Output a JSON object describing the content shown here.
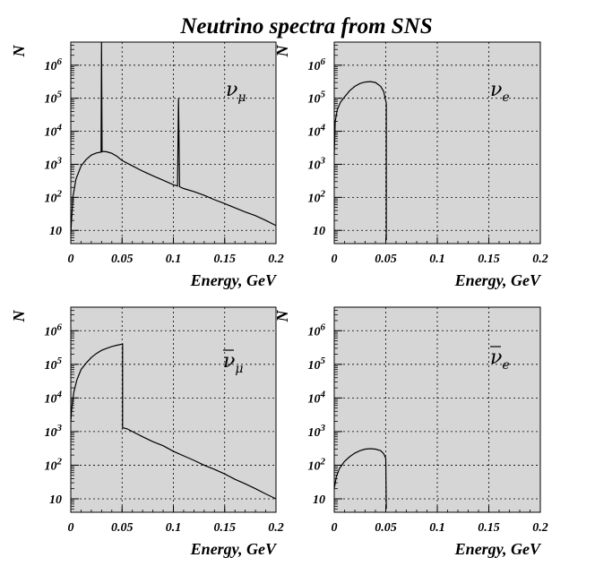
{
  "figure": {
    "title": "Neutrino spectra from SNS"
  },
  "chart_data": [
    {
      "type": "line",
      "label": "ν_μ",
      "xlabel": "Energy, GeV",
      "ylabel": "N",
      "xlim": [
        0,
        0.2
      ],
      "ylim_log10": [
        0.6,
        6.7
      ],
      "xticks": [
        "0",
        "0.05",
        "0.1",
        "0.15",
        "0.2"
      ],
      "yticks": [
        {
          "base": "10",
          "exp": "6",
          "v": 6
        },
        {
          "base": "10",
          "exp": "5",
          "v": 5
        },
        {
          "base": "10",
          "exp": "4",
          "v": 4
        },
        {
          "base": "10",
          "exp": "3",
          "v": 3
        },
        {
          "base": "10",
          "exp": "2",
          "v": 2
        },
        {
          "base": "10",
          "exp": "",
          "v": 1
        }
      ],
      "grid": true,
      "series": [
        {
          "name": "nu_mu",
          "x": [
            0.0,
            0.002,
            0.005,
            0.01,
            0.015,
            0.02,
            0.025,
            0.028,
            0.0295,
            0.03,
            0.0305,
            0.032,
            0.035,
            0.04,
            0.045,
            0.05,
            0.06,
            0.07,
            0.08,
            0.09,
            0.1,
            0.104,
            0.105,
            0.106,
            0.11,
            0.12,
            0.13,
            0.14,
            0.15,
            0.16,
            0.17,
            0.18,
            0.19,
            0.2
          ],
          "y": [
            8,
            100,
            350,
            900,
            1400,
            1900,
            2200,
            2300,
            2350,
            5000000,
            2400,
            2450,
            2400,
            2150,
            1750,
            1300,
            900,
            620,
            450,
            330,
            240,
            220,
            100000,
            210,
            185,
            150,
            115,
            85,
            65,
            48,
            36,
            28,
            20,
            14
          ]
        }
      ]
    },
    {
      "type": "line",
      "label": "ν_e",
      "xlabel": "Energy, GeV",
      "ylabel": "N",
      "xlim": [
        0,
        0.2
      ],
      "ylim_log10": [
        0.6,
        6.7
      ],
      "xticks": [
        "0",
        "0.05",
        "0.1",
        "0.15",
        "0.2"
      ],
      "yticks": [
        {
          "base": "10",
          "exp": "6",
          "v": 6
        },
        {
          "base": "10",
          "exp": "5",
          "v": 5
        },
        {
          "base": "10",
          "exp": "4",
          "v": 4
        },
        {
          "base": "10",
          "exp": "3",
          "v": 3
        },
        {
          "base": "10",
          "exp": "2",
          "v": 2
        },
        {
          "base": "10",
          "exp": "",
          "v": 1
        }
      ],
      "grid": true,
      "series": [
        {
          "name": "nu_e",
          "x": [
            0.0,
            0.001,
            0.003,
            0.006,
            0.01,
            0.015,
            0.02,
            0.025,
            0.03,
            0.035,
            0.04,
            0.045,
            0.048,
            0.0505,
            0.0505
          ],
          "y": [
            2000,
            20000,
            45000,
            75000,
            110000,
            170000,
            230000,
            280000,
            310000,
            320000,
            300000,
            230000,
            160000,
            70000,
            5
          ]
        }
      ]
    },
    {
      "type": "line",
      "label": "ν̄_μ",
      "xlabel": "Energy, GeV",
      "ylabel": "N",
      "xlim": [
        0,
        0.2
      ],
      "ylim_log10": [
        0.6,
        6.7
      ],
      "xticks": [
        "0",
        "0.05",
        "0.1",
        "0.15",
        "0.2"
      ],
      "yticks": [
        {
          "base": "10",
          "exp": "6",
          "v": 6
        },
        {
          "base": "10",
          "exp": "5",
          "v": 5
        },
        {
          "base": "10",
          "exp": "4",
          "v": 4
        },
        {
          "base": "10",
          "exp": "3",
          "v": 3
        },
        {
          "base": "10",
          "exp": "2",
          "v": 2
        },
        {
          "base": "10",
          "exp": "",
          "v": 1
        }
      ],
      "grid": true,
      "series": [
        {
          "name": "nu_mu_bar",
          "x": [
            0.0,
            0.001,
            0.003,
            0.006,
            0.01,
            0.015,
            0.02,
            0.025,
            0.03,
            0.035,
            0.04,
            0.045,
            0.0505,
            0.0505,
            0.055,
            0.06,
            0.07,
            0.08,
            0.09,
            0.1,
            0.11,
            0.12,
            0.13,
            0.14,
            0.15,
            0.16,
            0.17,
            0.18,
            0.19,
            0.2
          ],
          "y": [
            2000,
            5000,
            15000,
            35000,
            70000,
            110000,
            160000,
            210000,
            260000,
            300000,
            340000,
            370000,
            400000,
            1300,
            1200,
            1000,
            700,
            500,
            380,
            260,
            190,
            140,
            100,
            75,
            55,
            38,
            28,
            20,
            14,
            10
          ]
        }
      ]
    },
    {
      "type": "line",
      "label": "ν̄_e",
      "xlabel": "Energy, GeV",
      "ylabel": "N",
      "xlim": [
        0,
        0.2
      ],
      "ylim_log10": [
        0.6,
        6.7
      ],
      "xticks": [
        "0",
        "0.05",
        "0.1",
        "0.15",
        "0.2"
      ],
      "yticks": [
        {
          "base": "10",
          "exp": "6",
          "v": 6
        },
        {
          "base": "10",
          "exp": "5",
          "v": 5
        },
        {
          "base": "10",
          "exp": "4",
          "v": 4
        },
        {
          "base": "10",
          "exp": "3",
          "v": 3
        },
        {
          "base": "10",
          "exp": "2",
          "v": 2
        },
        {
          "base": "10",
          "exp": "",
          "v": 1
        }
      ],
      "grid": true,
      "series": [
        {
          "name": "nu_e_bar",
          "x": [
            0.0,
            0.002,
            0.005,
            0.01,
            0.015,
            0.02,
            0.025,
            0.03,
            0.035,
            0.04,
            0.045,
            0.048,
            0.05,
            0.0505
          ],
          "y": [
            20,
            45,
            80,
            130,
            180,
            230,
            270,
            300,
            310,
            300,
            270,
            220,
            160,
            5
          ]
        }
      ]
    }
  ]
}
